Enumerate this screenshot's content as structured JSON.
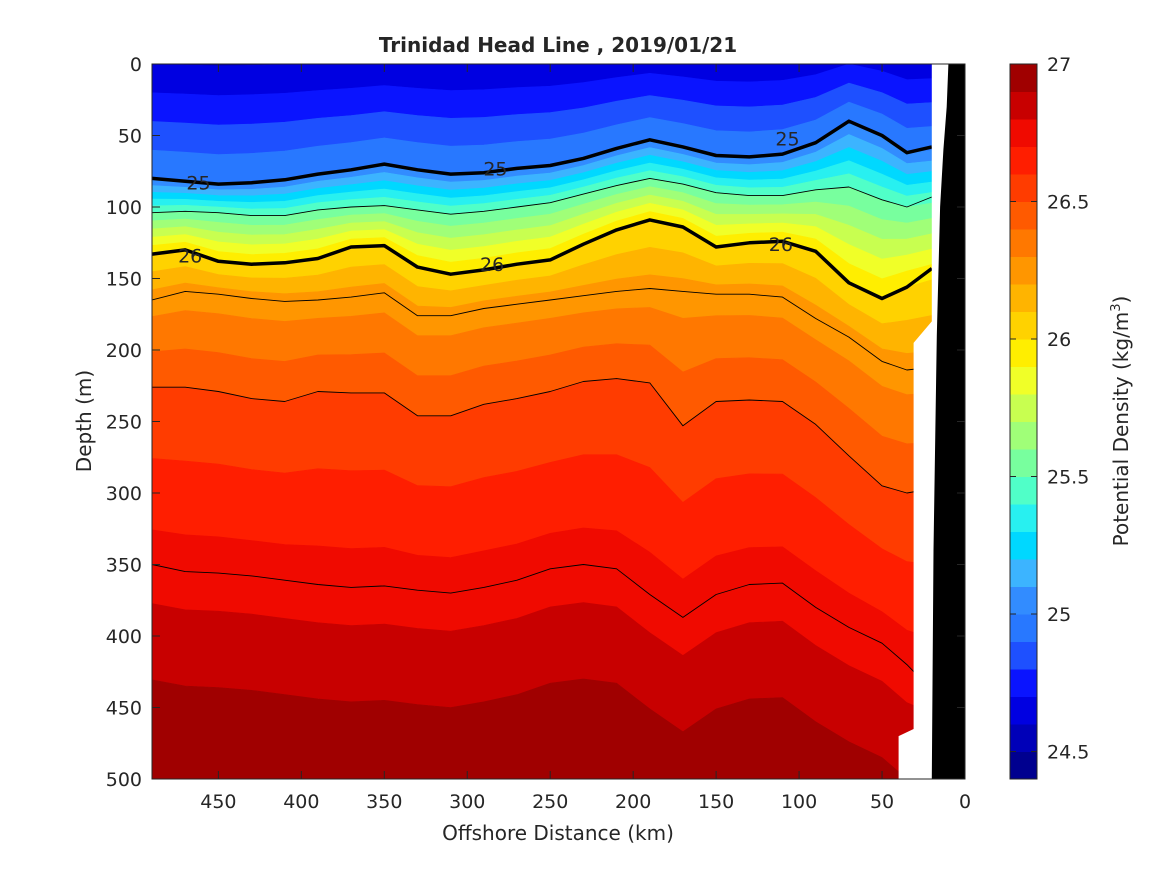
{
  "chart_data": {
    "type": "heatmap",
    "title": "Trinidad Head Line , 2019/01/21",
    "xlabel": "Offshore Distance (km)",
    "ylabel": "Depth (m)",
    "xlim": [
      490,
      0
    ],
    "ylim": [
      0,
      500
    ],
    "x_ticks": [
      450,
      400,
      350,
      300,
      250,
      200,
      150,
      100,
      50,
      0
    ],
    "y_ticks": [
      0,
      50,
      100,
      150,
      200,
      250,
      300,
      350,
      400,
      450,
      500
    ],
    "colorbar": {
      "label": "Potential Density (kg/m³)",
      "range": [
        24.4,
        27.0
      ],
      "ticks": [
        24.5,
        25,
        25.5,
        26,
        26.5,
        27
      ],
      "levels": [
        24.4,
        24.5,
        24.6,
        24.7,
        24.8,
        24.9,
        25.0,
        25.1,
        25.2,
        25.3,
        25.4,
        25.5,
        25.6,
        25.7,
        25.8,
        25.9,
        26.0,
        26.1,
        26.2,
        26.3,
        26.4,
        26.5,
        26.6,
        26.7,
        26.8,
        26.9,
        27.0
      ],
      "colors": [
        "#00008f",
        "#0000b8",
        "#0000e1",
        "#0a14ff",
        "#1e50ff",
        "#2878ff",
        "#328cff",
        "#3cb4ff",
        "#00d8ff",
        "#28f0f0",
        "#50ffc8",
        "#78ff9e",
        "#a0ff78",
        "#c8ff50",
        "#f0ff28",
        "#ffee00",
        "#ffd200",
        "#ffb400",
        "#ff9600",
        "#ff7800",
        "#ff5a00",
        "#ff3c00",
        "#ff1e00",
        "#f00a00",
        "#c80000",
        "#a00000"
      ]
    },
    "x": [
      490,
      470,
      450,
      430,
      410,
      390,
      370,
      350,
      330,
      310,
      290,
      270,
      250,
      230,
      210,
      190,
      170,
      150,
      130,
      110,
      90,
      70,
      50,
      35,
      20
    ],
    "isopycnals": [
      {
        "density": 25.0,
        "depths": [
          80,
          82,
          84,
          83,
          81,
          77,
          74,
          70,
          74,
          77,
          76,
          73,
          71,
          66,
          59,
          53,
          58,
          64,
          65,
          63,
          55,
          40,
          50,
          62,
          58
        ]
      },
      {
        "density": 25.5,
        "depths": [
          104,
          103,
          104,
          106,
          106,
          102,
          100,
          99,
          102,
          105,
          103,
          100,
          97,
          91,
          85,
          80,
          84,
          90,
          92,
          92,
          88,
          86,
          95,
          100,
          93
        ]
      },
      {
        "density": 26.0,
        "depths": [
          133,
          130,
          138,
          140,
          139,
          136,
          128,
          127,
          142,
          147,
          144,
          140,
          137,
          126,
          116,
          109,
          114,
          128,
          125,
          124,
          131,
          153,
          164,
          156,
          143
        ]
      },
      {
        "density": 26.25,
        "depths": [
          165,
          159,
          161,
          164,
          166,
          165,
          163,
          160,
          176,
          176,
          171,
          168,
          165,
          162,
          159,
          157,
          159,
          161,
          161,
          163,
          178,
          191,
          208,
          214,
          212
        ]
      },
      {
        "density": 26.5,
        "depths": [
          226,
          226,
          229,
          234,
          236,
          229,
          230,
          230,
          246,
          246,
          238,
          234,
          229,
          222,
          220,
          223,
          253,
          236,
          235,
          236,
          252,
          274,
          295,
          300,
          297
        ]
      },
      {
        "density": 26.75,
        "depths": [
          350,
          355,
          356,
          358,
          361,
          364,
          366,
          365,
          368,
          370,
          366,
          361,
          353,
          350,
          353,
          371,
          387,
          371,
          364,
          363,
          380,
          394,
          405,
          420,
          438
        ]
      }
    ],
    "contour_labels": [
      {
        "text": "25",
        "x": 462,
        "depth": 83
      },
      {
        "text": "25",
        "x": 283,
        "depth": 73
      },
      {
        "text": "25",
        "x": 107,
        "depth": 52
      },
      {
        "text": "26",
        "x": 467,
        "depth": 134
      },
      {
        "text": "26",
        "x": 285,
        "depth": 140
      },
      {
        "text": "26",
        "x": 111,
        "depth": 126
      }
    ],
    "bathymetry": {
      "x": [
        20,
        19,
        17,
        15,
        13,
        11,
        10
      ],
      "depth": [
        500,
        340,
        190,
        100,
        60,
        30,
        0
      ]
    },
    "no_data_mask": [
      {
        "x": 40,
        "depth": 500
      },
      {
        "x": 40,
        "depth": 470
      },
      {
        "x": 31,
        "depth": 465
      },
      {
        "x": 31,
        "depth": 195
      },
      {
        "x": 20,
        "depth": 180
      },
      {
        "x": 20,
        "depth": 0
      }
    ]
  }
}
